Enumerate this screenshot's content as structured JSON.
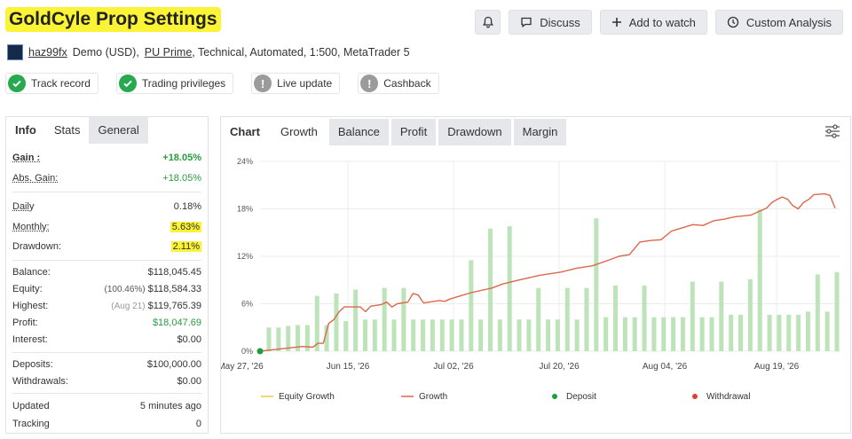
{
  "header": {
    "title": "GoldCyle Prop Settings",
    "buttons": {
      "discuss": "Discuss",
      "watch": "Add to watch",
      "analysis": "Custom Analysis"
    }
  },
  "account": {
    "user": "haz99fx",
    "part1": "Demo (USD),",
    "broker": "PU Prime",
    "part2": ", Technical, Automated, 1:500, MetaTrader 5"
  },
  "badges": [
    "Track record",
    "Trading privileges",
    "Live update",
    "Cashback"
  ],
  "left_tabs": [
    "Info",
    "Stats",
    "General"
  ],
  "stats": {
    "gain": {
      "label": "Gain :",
      "value": "+18.05%"
    },
    "abs_gain": {
      "label": "Abs. Gain:",
      "value": "+18.05%"
    },
    "daily": {
      "label": "Daily",
      "value": "0.18%"
    },
    "monthly": {
      "label": "Monthly:",
      "value": "5.63%"
    },
    "drawdown": {
      "label": "Drawdown:",
      "value": "2.11%"
    },
    "balance": {
      "label": "Balance:",
      "value": "$118,045.45"
    },
    "equity": {
      "label": "Equity:",
      "sub": "(100.46%)",
      "value": "$118,584.33"
    },
    "highest": {
      "label": "Highest:",
      "sub": "(Aug 21)",
      "value": "$119,765.39"
    },
    "profit": {
      "label": "Profit:",
      "value": "$18,047.69"
    },
    "interest": {
      "label": "Interest:",
      "value": "$0.00"
    },
    "deposits": {
      "label": "Deposits:",
      "value": "$100,000.00"
    },
    "withdrawals": {
      "label": "Withdrawals:",
      "value": "$0.00"
    },
    "updated": {
      "label": "Updated",
      "value": "5 minutes ago"
    },
    "tracking": {
      "label": "Tracking",
      "value": "0"
    }
  },
  "chart_tabs": [
    "Chart",
    "Growth",
    "Balance",
    "Profit",
    "Drawdown",
    "Margin"
  ],
  "colors": {
    "growth": "#d9694a",
    "bars": "#bde3b9",
    "deposit": "#1c9e3a",
    "withdrawal": "#e0402b",
    "equity": "#f0c64a",
    "highlight": "#fbf336"
  },
  "chart_data": {
    "type": "bar+line",
    "y_ticks": [
      "24%",
      "18%",
      "12%",
      "6%",
      "0%"
    ],
    "ylim": [
      0,
      24
    ],
    "x_ticks": [
      "May 27, '26",
      "Jun 15, '26",
      "Jul 02, '26",
      "Jul 20, '26",
      "Aug 04, '26",
      "Aug 19, '26"
    ],
    "legend": [
      "Equity Growth",
      "Growth",
      "Deposit",
      "Withdrawal"
    ],
    "bar_values": [
      3,
      3,
      3.2,
      3.3,
      3.3,
      7,
      3.3,
      7.3,
      3.8,
      7.8,
      4,
      4,
      8,
      4,
      8,
      4,
      4,
      4,
      4,
      4,
      4,
      11.5,
      4,
      15.5,
      4,
      15.8,
      4,
      4,
      8,
      4,
      4,
      8,
      4,
      8,
      16.8,
      4.3,
      8.3,
      4.3,
      4.3,
      8.3,
      4.3,
      4.3,
      4.3,
      4.3,
      8.8,
      4.3,
      4.3,
      8.8,
      4.6,
      4.6,
      9.1,
      17.9,
      4.6,
      4.6,
      4.6,
      4.6,
      5,
      9.7,
      5,
      10
    ],
    "growth_line": [
      [
        0,
        0
      ],
      [
        4,
        0.3
      ],
      [
        8,
        0.6
      ],
      [
        10,
        0.5
      ],
      [
        11,
        1
      ],
      [
        12,
        1
      ],
      [
        13,
        3.5
      ],
      [
        14,
        4
      ],
      [
        15,
        5
      ],
      [
        16,
        5.6
      ],
      [
        19,
        5.6
      ],
      [
        20,
        5
      ],
      [
        21,
        5.7
      ],
      [
        23,
        5.9
      ],
      [
        24,
        6.2
      ],
      [
        25,
        5.6
      ],
      [
        26,
        6
      ],
      [
        28,
        6.2
      ],
      [
        29,
        7.3
      ],
      [
        30,
        7.1
      ],
      [
        31,
        6.1
      ],
      [
        33,
        6.3
      ],
      [
        34,
        6.4
      ],
      [
        35,
        6.3
      ],
      [
        36,
        6.6
      ],
      [
        38,
        7
      ],
      [
        40,
        7.4
      ],
      [
        44,
        8
      ],
      [
        46,
        8.5
      ],
      [
        49,
        9
      ],
      [
        53,
        9.6
      ],
      [
        57,
        10
      ],
      [
        60,
        10.5
      ],
      [
        63,
        10.8
      ],
      [
        66,
        11.5
      ],
      [
        68,
        12
      ],
      [
        70,
        12.2
      ],
      [
        72,
        13.8
      ],
      [
        74,
        14
      ],
      [
        76,
        14.1
      ],
      [
        78,
        15.2
      ],
      [
        80,
        15.6
      ],
      [
        82,
        16
      ],
      [
        84,
        15.9
      ],
      [
        86,
        16.5
      ],
      [
        88,
        16.7
      ],
      [
        90,
        17
      ],
      [
        93,
        17.2
      ],
      [
        96,
        18.1
      ],
      [
        97,
        18.8
      ],
      [
        98,
        19.2
      ],
      [
        99,
        19.5
      ],
      [
        100,
        19.2
      ],
      [
        101,
        18.4
      ],
      [
        102,
        18
      ],
      [
        103,
        18.8
      ],
      [
        104,
        19.2
      ],
      [
        105,
        19.8
      ],
      [
        107,
        19.9
      ],
      [
        108,
        19.7
      ],
      [
        109,
        18.1
      ]
    ],
    "x_max": 109,
    "deposit_point": [
      0,
      0
    ]
  }
}
